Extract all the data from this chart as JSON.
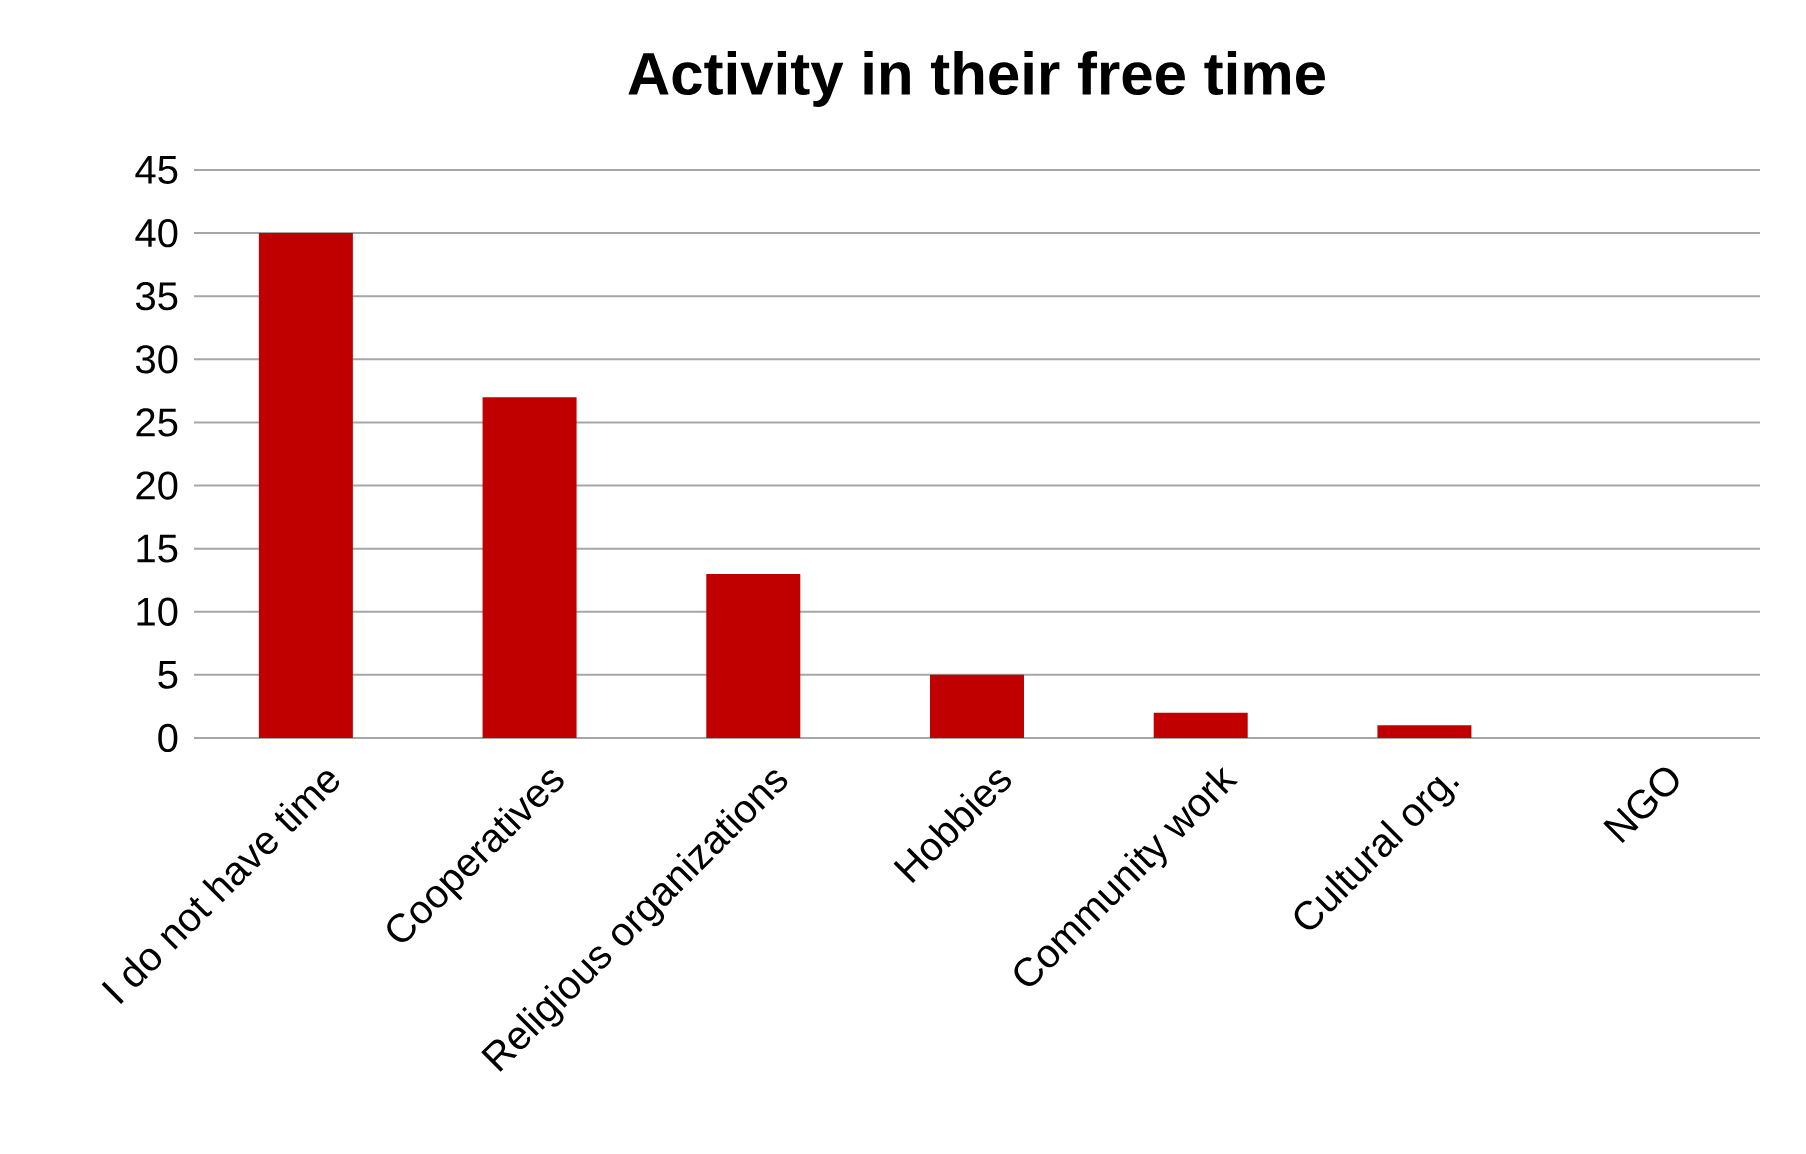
{
  "chart_data": {
    "type": "bar",
    "title": "Activity in their free time",
    "categories": [
      "I do not have time",
      "Cooperatives",
      "Religious organizations",
      "Hobbies",
      "Community work",
      "Cultural org.",
      "NGO"
    ],
    "values": [
      40,
      27,
      13,
      5,
      2,
      1,
      0
    ],
    "color": "#c00000",
    "ylim": [
      0,
      45
    ],
    "yticks": [
      0,
      5,
      10,
      15,
      20,
      25,
      30,
      35,
      40,
      45
    ],
    "grid": "y"
  }
}
